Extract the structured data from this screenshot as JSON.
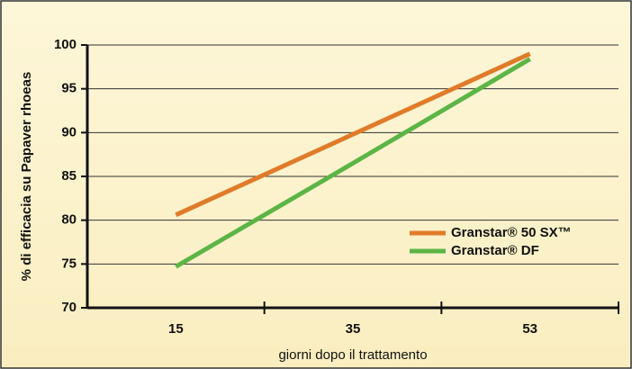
{
  "chart_data": {
    "type": "line",
    "ylabel": "% di efficacia su Papaver rhoeas",
    "xlabel": "giorni dopo il trattamento",
    "categories": [
      "15",
      "35",
      "53"
    ],
    "series": [
      {
        "name": "Granstar® 50 SX™",
        "color": "#e07b2a",
        "values": [
          80.6,
          89.8,
          99.0
        ]
      },
      {
        "name": "Granstar® DF",
        "color": "#5cb546",
        "values": [
          74.7,
          86.5,
          98.4
        ]
      }
    ],
    "ylim": [
      70,
      100
    ],
    "yticks": [
      70,
      75,
      80,
      85,
      90,
      95,
      100
    ],
    "grid": true,
    "legend": "lower right"
  }
}
